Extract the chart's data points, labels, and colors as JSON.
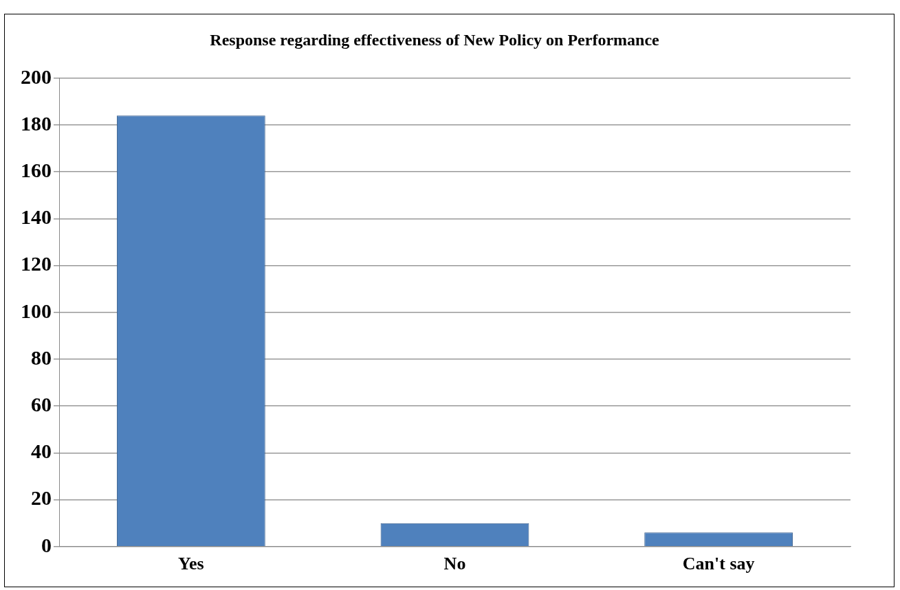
{
  "chart_data": {
    "type": "bar",
    "title": "Response regarding effectiveness of New Policy on Performance",
    "categories": [
      "Yes",
      "No",
      "Can't say"
    ],
    "values": [
      184,
      10,
      6
    ],
    "color": "#4f81bd",
    "ylim": [
      0,
      200
    ],
    "yticks": [
      0,
      20,
      40,
      60,
      80,
      100,
      120,
      140,
      160,
      180,
      200
    ],
    "grid": "y",
    "legend": false
  }
}
